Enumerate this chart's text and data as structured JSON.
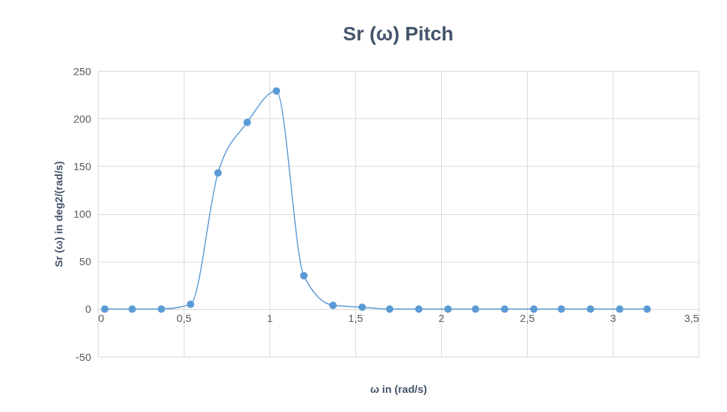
{
  "chart_data": {
    "type": "line",
    "title": "Sr (ω) Pitch",
    "xlabel": "ω in (rad/s)",
    "ylabel": "Sr (ω) in deg2/(rad/s)",
    "x": [
      0.04,
      0.2,
      0.37,
      0.54,
      0.7,
      0.87,
      1.04,
      1.2,
      1.37,
      1.54,
      1.7,
      1.87,
      2.04,
      2.2,
      2.37,
      2.54,
      2.7,
      2.87,
      3.04,
      3.2
    ],
    "series": [
      {
        "color": "#5b9bd5",
        "values": [
          0,
          0,
          0,
          5,
          143,
          196,
          229,
          35,
          4,
          2,
          0,
          0,
          0,
          0,
          0,
          0,
          0,
          0,
          0,
          0
        ]
      }
    ],
    "xlim": [
      0,
      3.5
    ],
    "xticks": [
      0,
      {
        "value": 0.5,
        "label": "0,5"
      },
      1,
      {
        "value": 1.5,
        "label": "1,5"
      },
      2,
      {
        "value": 2.5,
        "label": "2,5"
      },
      3,
      {
        "value": 3.5,
        "label": "3,5"
      }
    ],
    "ylim": [
      -50,
      250
    ],
    "yticks": [
      -50,
      0,
      50,
      100,
      150,
      200,
      250
    ],
    "grid": true,
    "marker": "circle",
    "line_style": "solid"
  }
}
